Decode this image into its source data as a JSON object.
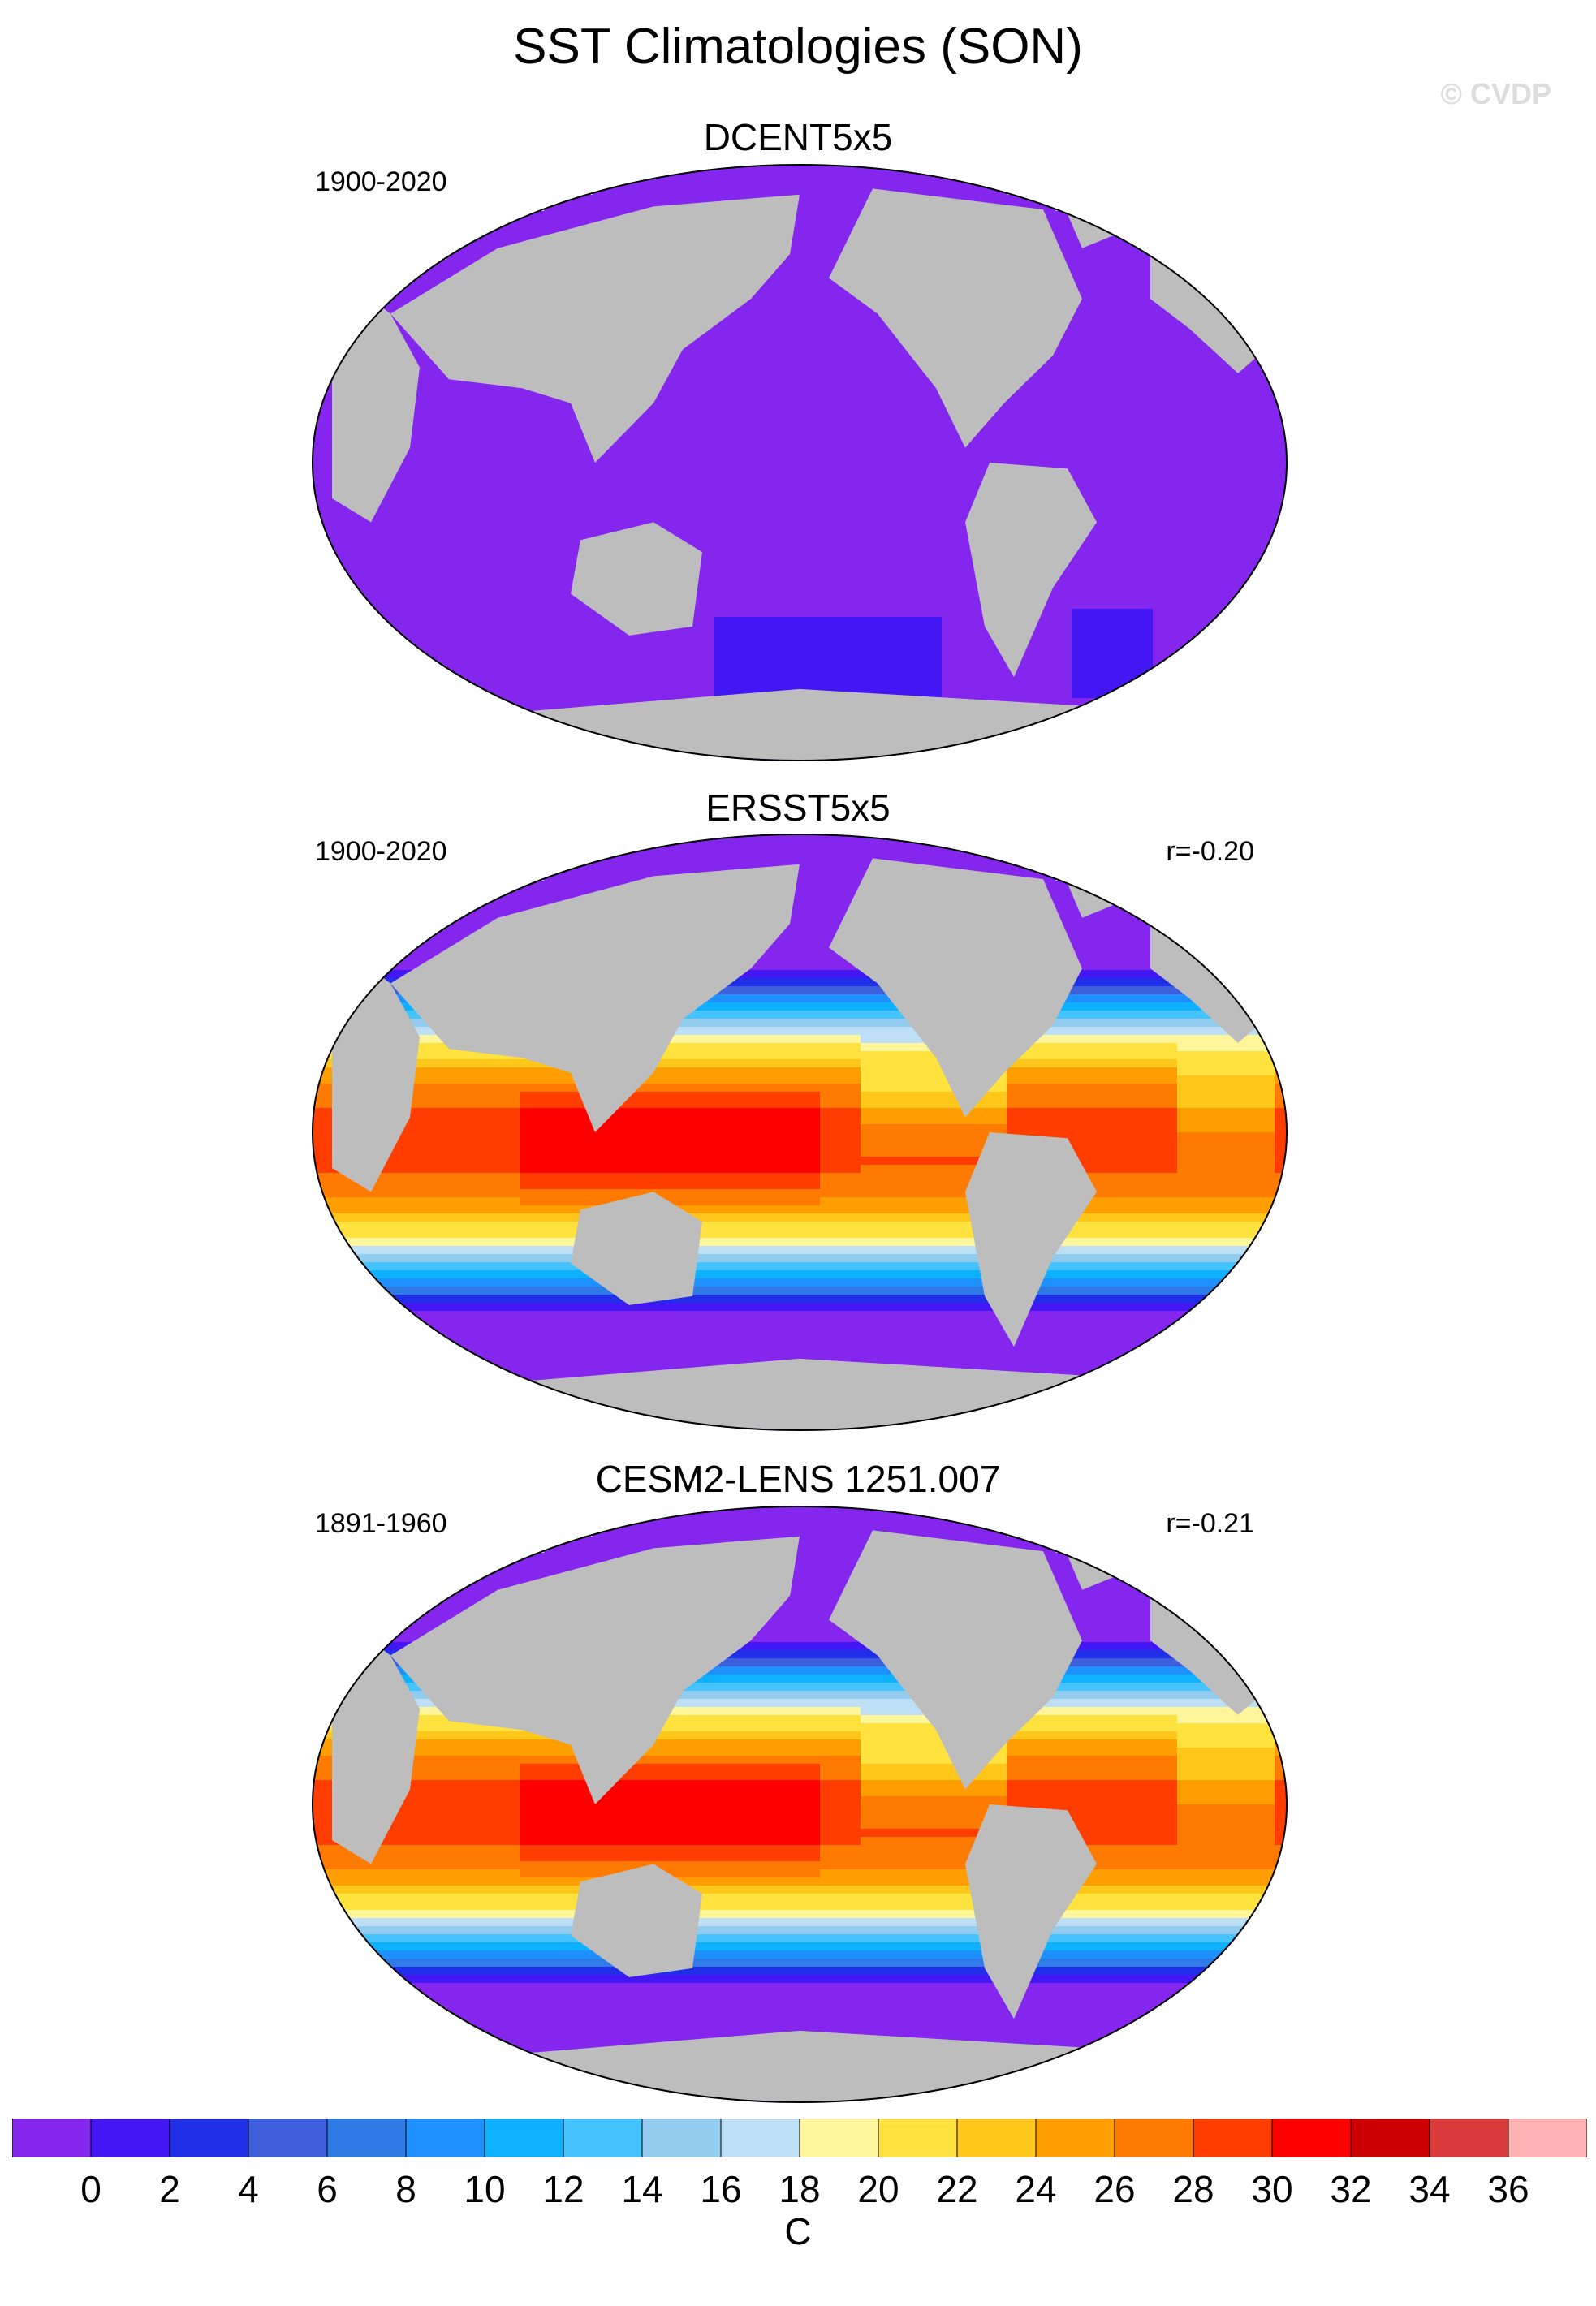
{
  "title": "SST Climatologies (SON)",
  "watermark": "© CVDP",
  "panels": [
    {
      "id": "dcent",
      "title": "DCENT5x5",
      "period": "1900-2020",
      "correlation": "",
      "field": "near-zero"
    },
    {
      "id": "ersst",
      "title": "ERSST5x5",
      "period": "1900-2020",
      "correlation": "r=-0.20",
      "field": "climatology"
    },
    {
      "id": "cesm",
      "title": "CESM2-LENS 1251.007",
      "period": "1891-1960",
      "correlation": "r=-0.21",
      "field": "climatology"
    }
  ],
  "colorbar": {
    "units": "C",
    "ticks": [
      "0",
      "2",
      "4",
      "6",
      "8",
      "10",
      "12",
      "14",
      "16",
      "18",
      "20",
      "22",
      "24",
      "26",
      "28",
      "30",
      "32",
      "34",
      "36"
    ],
    "colors": [
      "#8526ef",
      "#4316f4",
      "#1f2fe8",
      "#3d5fdc",
      "#2f7be6",
      "#1e90ff",
      "#0eb1ff",
      "#44c3ff",
      "#92ccee",
      "#bde0f6",
      "#fff59a",
      "#ffe23d",
      "#ffc719",
      "#ff9e00",
      "#ff7a00",
      "#ff3d00",
      "#ff0000",
      "#cc0000",
      "#d93a3a",
      "#ffb3b3"
    ]
  },
  "colors": {
    "land": "#bdbdbd",
    "missing": "#ffffff",
    "border": "#000000"
  }
}
